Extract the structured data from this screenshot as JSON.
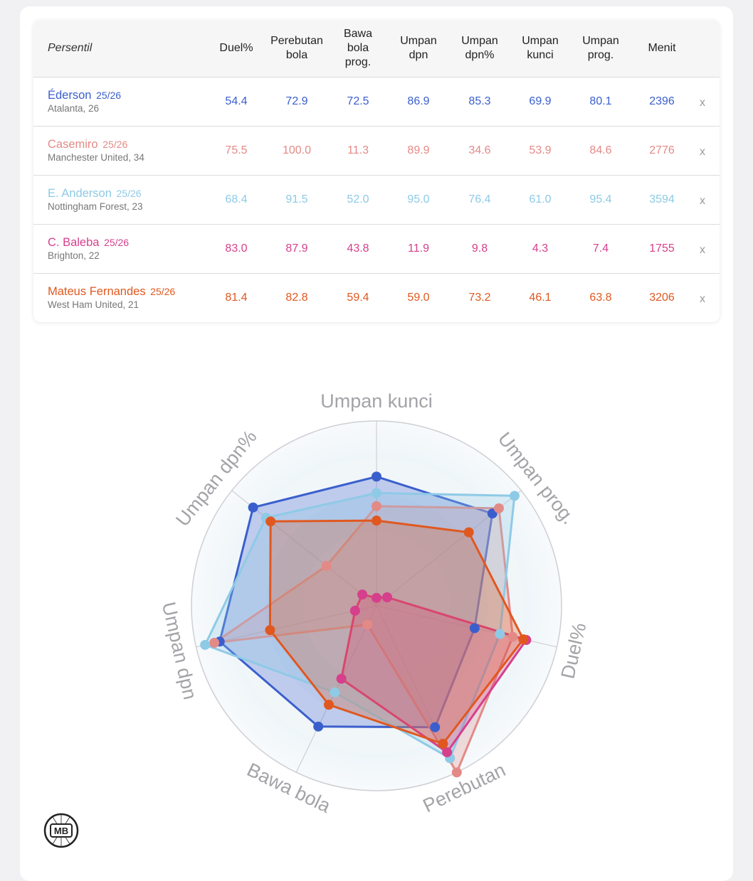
{
  "table": {
    "corner_label": "Persentil",
    "columns": [
      "Duel%",
      "Perebutan\nbola",
      "Bawa\nbola\nprog.",
      "Umpan\ndpn",
      "Umpan\ndpn%",
      "Umpan\nkunci",
      "Umpan\nprog.",
      "Menit"
    ],
    "remove_label": "x",
    "rows": [
      {
        "name": "Éderson",
        "season": "25/26",
        "club": "Atalanta, 26",
        "color": "#3a5fcd",
        "values": [
          "54.4",
          "72.9",
          "72.5",
          "86.9",
          "85.3",
          "69.9",
          "80.1",
          "2396"
        ]
      },
      {
        "name": "Casemiro",
        "season": "25/26",
        "club": "Manchester United, 34",
        "color": "#e38a87",
        "values": [
          "75.5",
          "100.0",
          "11.3",
          "89.9",
          "34.6",
          "53.9",
          "84.6",
          "2776"
        ]
      },
      {
        "name": "E. Anderson",
        "season": "25/26",
        "club": "Nottingham Forest, 23",
        "color": "#8ecae6",
        "values": [
          "68.4",
          "91.5",
          "52.0",
          "95.0",
          "76.4",
          "61.0",
          "95.4",
          "3594"
        ]
      },
      {
        "name": "C. Baleba",
        "season": "25/26",
        "club": "Brighton, 22",
        "color": "#d63f8c",
        "values": [
          "83.0",
          "87.9",
          "43.8",
          "11.9",
          "9.8",
          "4.3",
          "7.4",
          "1755"
        ]
      },
      {
        "name": "Mateus Fernandes",
        "season": "25/26",
        "club": "West Ham United, 21",
        "color": "#e0581f",
        "values": [
          "81.4",
          "82.8",
          "59.4",
          "59.0",
          "73.2",
          "46.1",
          "63.8",
          "3206"
        ]
      }
    ]
  },
  "chart_data": {
    "type": "radar",
    "axes": [
      "Umpan kunci",
      "Umpan prog.",
      "Duel%",
      "Perebutan",
      "Bawa bola",
      "Umpan dpn",
      "Umpan dpn%"
    ],
    "range": [
      0,
      100
    ],
    "grid": true,
    "series": [
      {
        "name": "Éderson",
        "color": "#3a5fcd",
        "values": [
          69.9,
          80.1,
          54.4,
          72.9,
          72.5,
          86.9,
          85.3
        ]
      },
      {
        "name": "Casemiro",
        "color": "#e38a87",
        "values": [
          53.9,
          84.6,
          75.5,
          100.0,
          11.3,
          89.9,
          34.6
        ]
      },
      {
        "name": "E. Anderson",
        "color": "#8ecae6",
        "values": [
          61.0,
          95.4,
          68.4,
          91.5,
          52.0,
          95.0,
          76.4
        ]
      },
      {
        "name": "C. Baleba",
        "color": "#d63f8c",
        "values": [
          4.3,
          7.4,
          83.0,
          87.9,
          43.8,
          11.9,
          9.8
        ]
      },
      {
        "name": "Mateus Fernandes",
        "color": "#e0581f",
        "values": [
          46.1,
          63.8,
          81.4,
          82.8,
          59.4,
          59.0,
          73.2
        ]
      }
    ]
  },
  "logo": {
    "text": "MB"
  }
}
